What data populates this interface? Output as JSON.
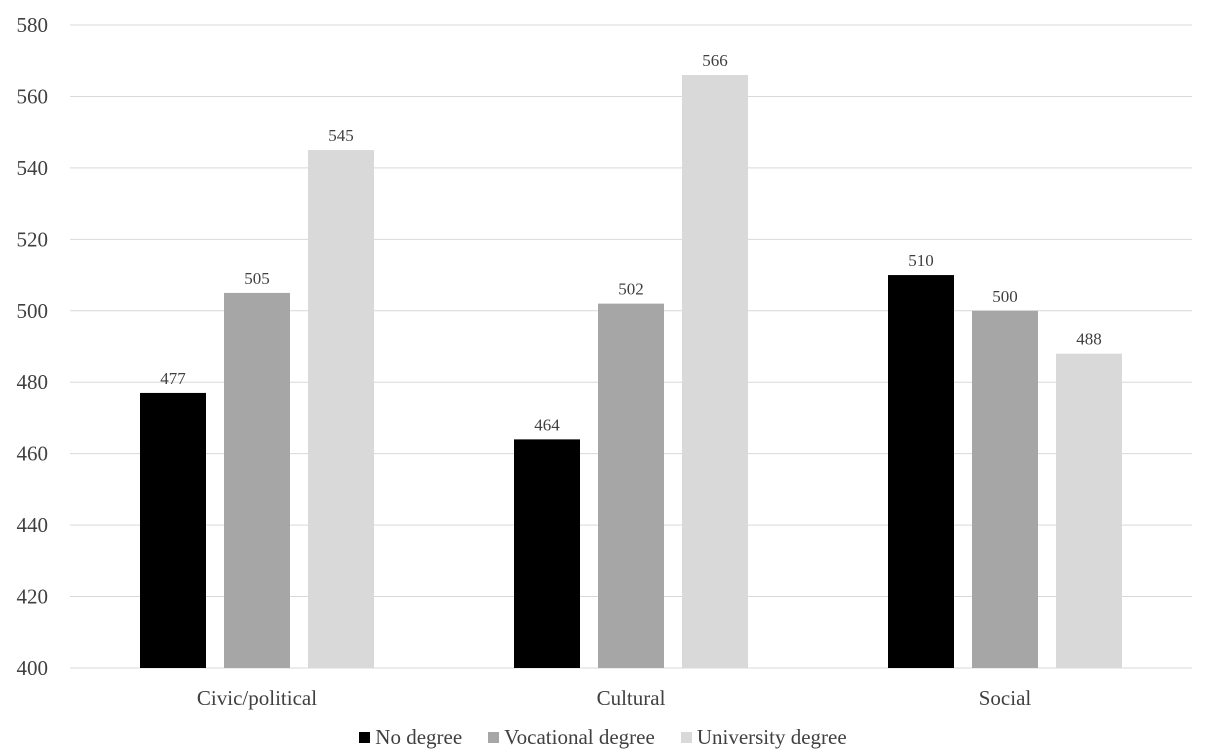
{
  "chart_data": {
    "type": "bar",
    "title": "",
    "xlabel": "",
    "ylabel": "",
    "categories": [
      "Civic/political",
      "Cultural",
      "Social"
    ],
    "series": [
      {
        "name": "No degree",
        "values": [
          477,
          464,
          510
        ],
        "color": "#000000"
      },
      {
        "name": "Vocational degree",
        "values": [
          505,
          502,
          500
        ],
        "color": "#a6a6a6"
      },
      {
        "name": "University degree",
        "values": [
          545,
          566,
          488
        ],
        "color": "#d9d9d9"
      }
    ],
    "ylim": [
      400,
      580
    ],
    "yticks": [
      400,
      420,
      440,
      460,
      480,
      500,
      520,
      540,
      560,
      580
    ],
    "grid": true,
    "gridline_color": "#d9d9d9",
    "legend_position": "bottom"
  }
}
